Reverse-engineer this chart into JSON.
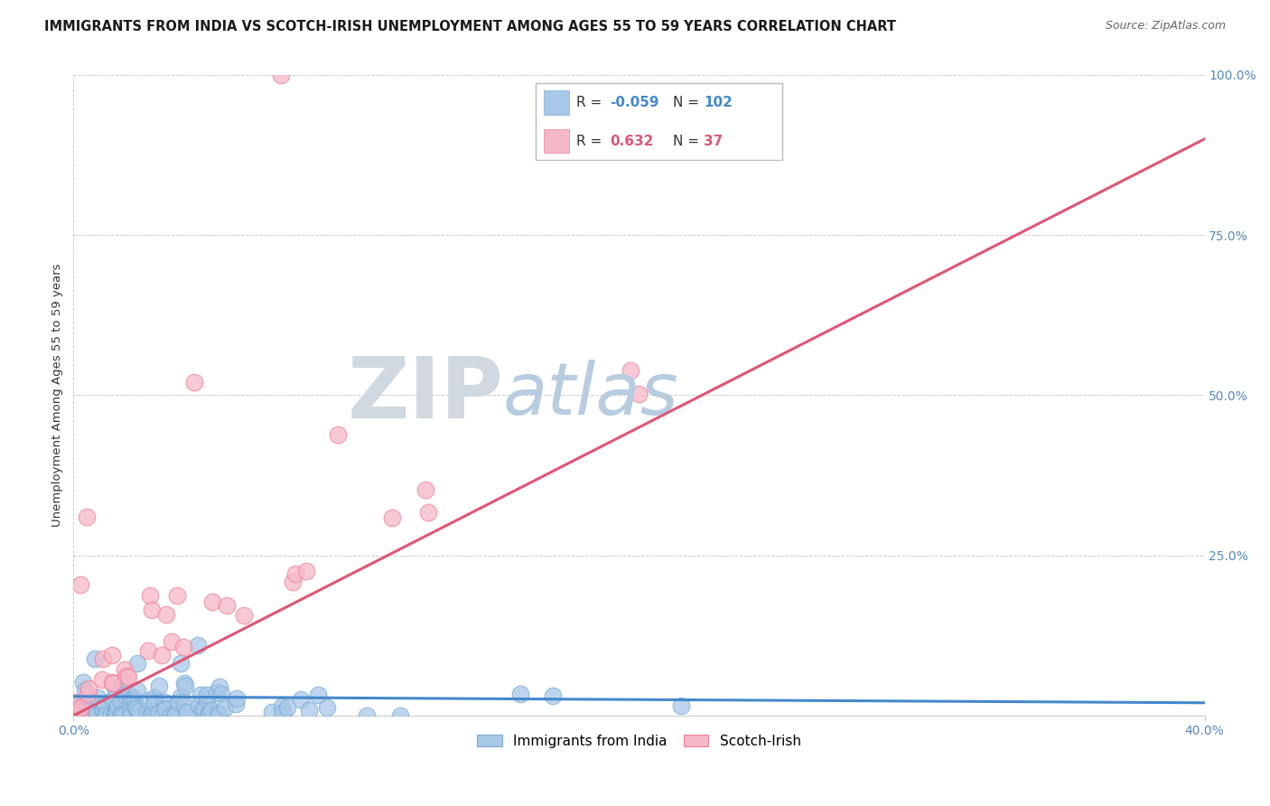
{
  "title": "IMMIGRANTS FROM INDIA VS SCOTCH-IRISH UNEMPLOYMENT AMONG AGES 55 TO 59 YEARS CORRELATION CHART",
  "source": "Source: ZipAtlas.com",
  "ylabel": "Unemployment Among Ages 55 to 59 years",
  "xlim": [
    0.0,
    40.0
  ],
  "ylim": [
    0.0,
    100.0
  ],
  "ytick_vals": [
    0,
    25,
    50,
    75,
    100
  ],
  "ytick_labels": [
    "",
    "25.0%",
    "50.0%",
    "75.0%",
    "100.0%"
  ],
  "xtick_vals": [
    0,
    40
  ],
  "xtick_labels": [
    "0.0%",
    "40.0%"
  ],
  "blue_color": "#a8c8e8",
  "blue_edge_color": "#7aadd4",
  "pink_color": "#f5b8c8",
  "pink_edge_color": "#f08098",
  "blue_line_color": "#4488cc",
  "pink_line_color": "#e05575",
  "tick_color": "#5588bb",
  "watermark_zip_color": "#d0d8e0",
  "watermark_atlas_color": "#b8cce0",
  "title_fontsize": 10.5,
  "source_fontsize": 9,
  "axis_label_fontsize": 9.5,
  "tick_fontsize": 10,
  "legend_fontsize": 11,
  "blue_R": -0.059,
  "blue_N": 102,
  "pink_R": 0.632,
  "pink_N": 37,
  "pink_line_x0": 0,
  "pink_line_y0": 0,
  "pink_line_x1": 40,
  "pink_line_y1": 90,
  "blue_line_x0": 0,
  "blue_line_y0": 3.0,
  "blue_line_x1": 40,
  "blue_line_y1": 2.0,
  "seed": 123
}
